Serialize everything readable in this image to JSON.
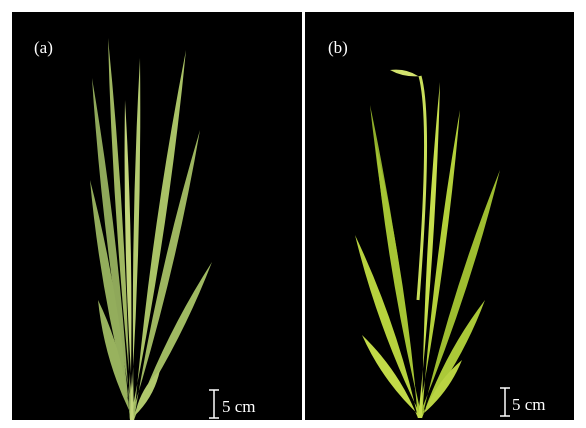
{
  "panels": [
    {
      "label": "(a)",
      "scale_bar": "5 cm"
    },
    {
      "label": "(b)",
      "scale_bar": "5 cm"
    }
  ]
}
